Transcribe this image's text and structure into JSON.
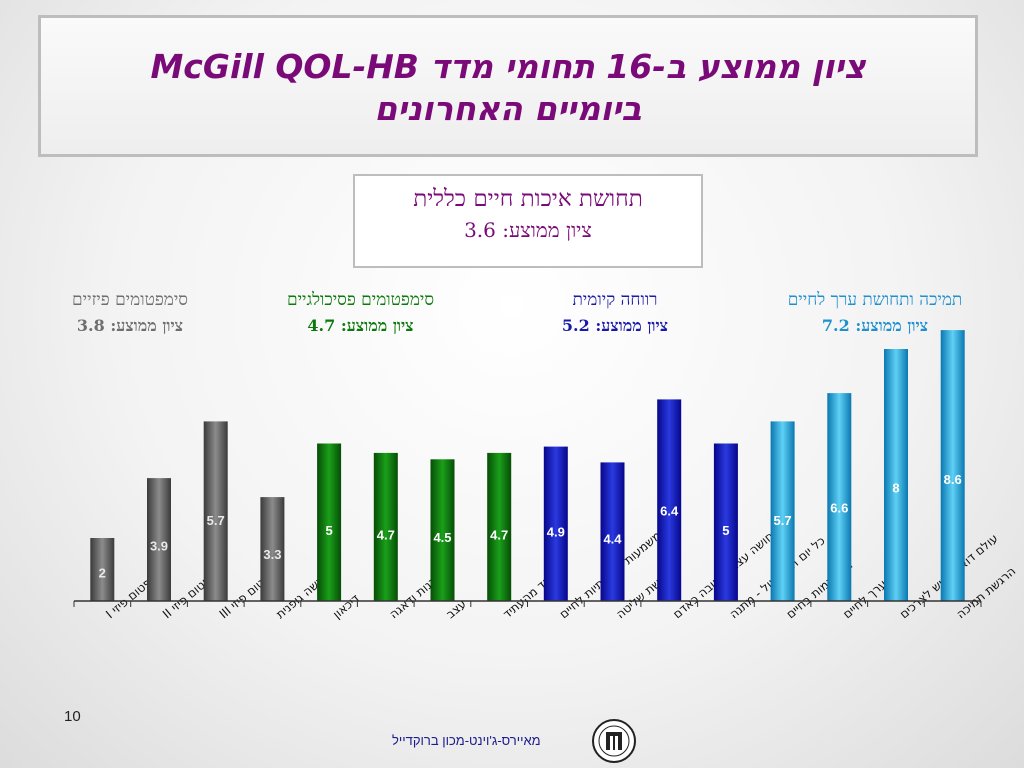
{
  "title": {
    "line1": "ציון ממוצע ב-16 תחומי מדד McGill QOL-HB",
    "line2": "ביומיים האחרונים"
  },
  "overall": {
    "label": "תחושת איכות חיים כללית",
    "avg_text": "ציון ממוצע: 3.6"
  },
  "groups": [
    {
      "name": "סימפטומים פיזיים",
      "avg_text": "ציון ממוצע: 3.8",
      "color": "#6e6e6e"
    },
    {
      "name": "סימפטומים פסיכולגיים",
      "avg_text": "ציון ממוצע: 4.7",
      "color": "#0a7a0a"
    },
    {
      "name": "רווחה קיומית",
      "avg_text": "ציון ממוצע: 5.2",
      "color": "#1a1aa8"
    },
    {
      "name": "תמיכה ותחושת ערך לחיים",
      "avg_text": "ציון ממוצע: 7.2",
      "color": "#1e90d0"
    }
  ],
  "page_number": "10",
  "footer_text": "מאיירס-ג'וינט-מכון ברוקדייל",
  "chart_data": {
    "type": "bar",
    "title": "",
    "xlabel": "",
    "ylabel": "",
    "ylim": [
      0,
      9.5
    ],
    "grid": false,
    "legend": "none",
    "categories": [
      "סימפטום פיזי I",
      "סימפטום פיזי II",
      "סימפטום פיזי III",
      "הרגשה גופנית",
      "דיכאון",
      "עצבנות ודאגה",
      "עצב",
      "פחד מהעתיד",
      "משמעות ותכליתיות לחיים",
      "תחושת שליטה",
      "תחושה עצמית טובה כאדם",
      "כל יום הוא: עול - מתנה",
      "התקדמות בחיים",
      "ערך לחיים",
      "עולם דואג ורגיש לצרכים",
      "הרגשת תמיכה"
    ],
    "values": [
      2,
      3.9,
      5.7,
      3.3,
      5,
      4.7,
      4.5,
      4.7,
      4.9,
      4.4,
      6.4,
      5,
      5.7,
      6.6,
      8,
      8.6
    ],
    "group_index": [
      0,
      0,
      0,
      0,
      1,
      1,
      1,
      1,
      2,
      2,
      2,
      2,
      3,
      3,
      3,
      3
    ],
    "group_colors": [
      [
        "#3a3a3a",
        "#8c8c8c",
        "#3a3a3a"
      ],
      [
        "#064d06",
        "#1aa01a",
        "#064d06"
      ],
      [
        "#06068a",
        "#2a3ae0",
        "#06068a"
      ],
      [
        "#0a78b0",
        "#5fd0f5",
        "#0a78b0"
      ]
    ]
  }
}
